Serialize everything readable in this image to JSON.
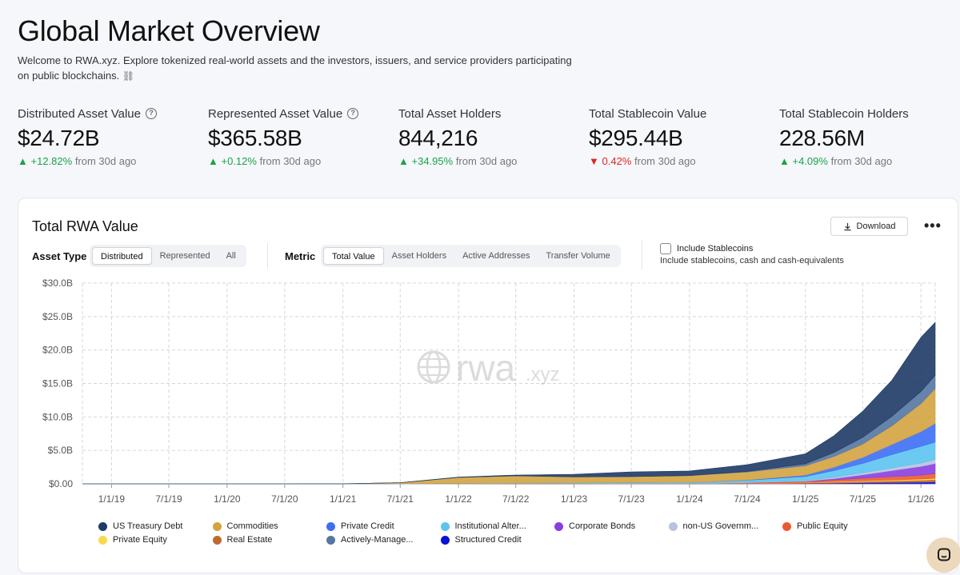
{
  "header": {
    "title": "Global Market Overview",
    "subtitle": "Welcome to RWA.xyz. Explore tokenized real-world assets and the investors, issuers, and service providers participating on public blockchains.",
    "subtitle_icon": "link-icon"
  },
  "stats": [
    {
      "label": "Distributed Asset Value",
      "help": "?",
      "value": "$24.72B",
      "arrow": "▲",
      "change": "+12.82%",
      "direction": "up",
      "suffix": "from 30d ago"
    },
    {
      "label": "Represented Asset Value",
      "help": "?",
      "value": "$365.58B",
      "arrow": "▲",
      "change": "+0.12%",
      "direction": "up",
      "suffix": "from 30d ago"
    },
    {
      "label": "Total Asset Holders",
      "value": "844,216",
      "arrow": "▲",
      "change": "+34.95%",
      "direction": "up",
      "suffix": "from 30d ago"
    },
    {
      "label": "Total Stablecoin Value",
      "value": "$295.44B",
      "arrow": "▼",
      "change": "0.42%",
      "direction": "down",
      "suffix": "from 30d ago"
    },
    {
      "label": "Total Stablecoin Holders",
      "value": "228.56M",
      "arrow": "▲",
      "change": "+4.09%",
      "direction": "up",
      "suffix": "from 30d ago"
    }
  ],
  "card": {
    "title": "Total RWA Value",
    "download_label": "Download",
    "more_label": "•••",
    "asset_type": {
      "label": "Asset Type",
      "options": [
        "Distributed",
        "Represented",
        "All"
      ],
      "selected": "Distributed"
    },
    "metric": {
      "label": "Metric",
      "options": [
        "Total Value",
        "Asset Holders",
        "Active Addresses",
        "Transfer Volume"
      ],
      "selected": "Total Value"
    },
    "stablecoins": {
      "label": "Include Stablecoins",
      "description": "Include stablecoins, cash and cash-equivalents",
      "checked": false
    }
  },
  "watermark": {
    "brand": "rwa",
    "suffix": ".xyz"
  },
  "colors": {
    "up": "#19a34a",
    "down": "#e02424",
    "us_treasury": "#1e3a66",
    "commodities": "#d4a340",
    "private_credit": "#3d6ff5",
    "institutional_alt": "#5cc3ef",
    "corporate_bonds": "#8a3ee0",
    "non_us_gov": "#b7c3df",
    "public_equity": "#ea5a2f",
    "private_equity": "#f7d94c",
    "real_estate": "#c0692e",
    "actively_managed": "#5477a3",
    "structured_credit": "#0a10d8"
  },
  "chart_data": {
    "type": "area",
    "stacked": true,
    "title": "Total RWA Value",
    "xlabel": "",
    "ylabel": "",
    "y_tick_labels": [
      "$0.00",
      "$5.0B",
      "$10.0B",
      "$15.0B",
      "$20.0B",
      "$25.0B",
      "$30.0B"
    ],
    "ylim": [
      0,
      30
    ],
    "y_unit": "$B",
    "x_tick_labels": [
      "1/1/19",
      "7/1/19",
      "1/1/20",
      "7/1/20",
      "1/1/21",
      "7/1/21",
      "1/1/22",
      "7/1/22",
      "1/1/23",
      "7/1/23",
      "1/1/24",
      "7/1/24",
      "1/1/25",
      "7/1/25",
      "1/1/26"
    ],
    "x": [
      "2018-10-01",
      "2019-01-01",
      "2019-07-01",
      "2020-01-01",
      "2020-07-01",
      "2021-01-01",
      "2021-07-01",
      "2022-01-01",
      "2022-07-01",
      "2023-01-01",
      "2023-07-01",
      "2024-01-01",
      "2024-07-01",
      "2025-01-01",
      "2025-04-01",
      "2025-07-01",
      "2025-10-01",
      "2026-01-01",
      "2026-02-15"
    ],
    "grid": true,
    "legend_position": "bottom",
    "series": [
      {
        "name": "Structured Credit",
        "color_key": "structured_credit",
        "values": [
          0,
          0,
          0,
          0,
          0,
          0,
          0,
          0,
          0,
          0,
          0,
          0,
          0,
          0.05,
          0.1,
          0.15,
          0.2,
          0.25,
          0.3
        ]
      },
      {
        "name": "Real Estate",
        "color_key": "real_estate",
        "values": [
          0,
          0,
          0,
          0,
          0,
          0,
          0,
          0.02,
          0.03,
          0.04,
          0.05,
          0.06,
          0.08,
          0.1,
          0.15,
          0.2,
          0.25,
          0.3,
          0.35
        ]
      },
      {
        "name": "Private Equity",
        "color_key": "private_equity",
        "values": [
          0,
          0,
          0,
          0,
          0,
          0,
          0,
          0,
          0,
          0,
          0,
          0,
          0.02,
          0.05,
          0.08,
          0.1,
          0.12,
          0.15,
          0.18
        ]
      },
      {
        "name": "Public Equity",
        "color_key": "public_equity",
        "values": [
          0,
          0,
          0,
          0,
          0,
          0,
          0,
          0,
          0,
          0,
          0,
          0,
          0.05,
          0.15,
          0.25,
          0.4,
          0.5,
          0.6,
          0.7
        ]
      },
      {
        "name": "Corporate Bonds",
        "color_key": "corporate_bonds",
        "values": [
          0,
          0,
          0,
          0,
          0,
          0,
          0,
          0,
          0,
          0,
          0,
          0,
          0.02,
          0.05,
          0.2,
          0.5,
          0.9,
          1.3,
          1.5
        ]
      },
      {
        "name": "non-US Government Debt",
        "color_key": "non_us_gov",
        "values": [
          0,
          0,
          0,
          0,
          0,
          0,
          0,
          0,
          0,
          0,
          0.01,
          0.02,
          0.05,
          0.1,
          0.2,
          0.3,
          0.4,
          0.5,
          0.6
        ]
      },
      {
        "name": "Institutional Alternative Funds",
        "color_key": "institutional_alt",
        "values": [
          0,
          0,
          0,
          0,
          0,
          0.01,
          0.02,
          0.05,
          0.08,
          0.1,
          0.12,
          0.15,
          0.3,
          0.6,
          1.0,
          1.4,
          2.0,
          2.5,
          2.6
        ]
      },
      {
        "name": "Private Credit",
        "color_key": "private_credit",
        "values": [
          0,
          0,
          0,
          0,
          0,
          0,
          0,
          0,
          0,
          0,
          0,
          0,
          0.05,
          0.2,
          0.5,
          0.9,
          1.5,
          2.2,
          2.8
        ]
      },
      {
        "name": "Commodities",
        "color_key": "commodities",
        "values": [
          0,
          0,
          0,
          0,
          0,
          0,
          0.15,
          0.9,
          1.1,
          0.9,
          0.9,
          1.0,
          1.2,
          1.4,
          1.6,
          2.0,
          2.8,
          4.2,
          5.2
        ]
      },
      {
        "name": "Actively-Managed Strategies",
        "color_key": "actively_managed",
        "values": [
          0,
          0,
          0,
          0,
          0,
          0,
          0,
          0,
          0,
          0,
          0,
          0,
          0.1,
          0.3,
          0.6,
          1.0,
          1.4,
          1.8,
          2.0
        ]
      },
      {
        "name": "US Treasury Debt",
        "color_key": "us_treasury",
        "values": [
          0,
          0,
          0,
          0,
          0,
          0,
          0,
          0.05,
          0.1,
          0.4,
          0.7,
          0.7,
          1.0,
          1.5,
          2.5,
          3.9,
          5.4,
          8.1,
          7.9
        ]
      }
    ]
  },
  "legend": [
    {
      "label": "US Treasury Debt",
      "color_key": "us_treasury",
      "icon": "legend-dot-icon"
    },
    {
      "label": "Commodities",
      "color_key": "commodities",
      "icon": "legend-dot-icon"
    },
    {
      "label": "Private Credit",
      "color_key": "private_credit",
      "icon": "legend-dot-icon"
    },
    {
      "label": "Institutional Alter...",
      "color_key": "institutional_alt",
      "icon": "legend-dot-icon"
    },
    {
      "label": "Corporate Bonds",
      "color_key": "corporate_bonds",
      "icon": "legend-dot-icon"
    },
    {
      "label": "non-US Governm...",
      "color_key": "non_us_gov",
      "icon": "legend-dot-icon"
    },
    {
      "label": "Public Equity",
      "color_key": "public_equity",
      "icon": "legend-dot-icon"
    },
    {
      "label": "Private Equity",
      "color_key": "private_equity",
      "icon": "legend-dot-icon"
    },
    {
      "label": "Real Estate",
      "color_key": "real_estate",
      "icon": "legend-dot-icon"
    },
    {
      "label": "Actively-Manage...",
      "color_key": "actively_managed",
      "icon": "legend-dot-icon"
    },
    {
      "label": "Structured Credit",
      "color_key": "structured_credit",
      "icon": "legend-dot-icon"
    }
  ],
  "chat": {
    "icon": "chat-icon"
  }
}
